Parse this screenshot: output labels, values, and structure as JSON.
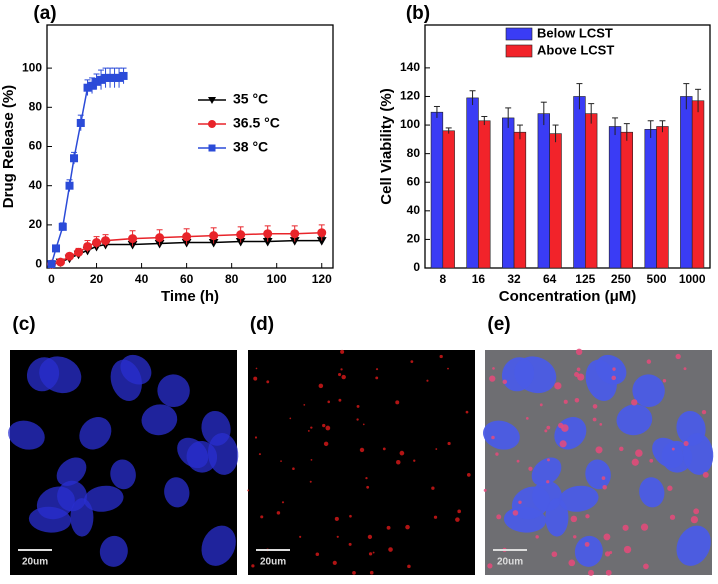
{
  "chart_data": [
    {
      "type": "line",
      "panel": "(a)",
      "xlabel": "Time (h)",
      "ylabel": "Drug Release (%)",
      "xlim": [
        -2,
        125
      ],
      "ylim": [
        -2,
        122
      ],
      "xticks": [
        0,
        20,
        40,
        60,
        80,
        100,
        120
      ],
      "yticks": [
        0,
        20,
        40,
        60,
        80,
        100
      ],
      "series": [
        {
          "name": "35 °C",
          "color": "#000000",
          "marker": "triangle-down",
          "x": [
            0,
            4,
            8,
            12,
            16,
            20,
            24,
            36,
            48,
            60,
            72,
            84,
            96,
            108,
            120
          ],
          "values": [
            0,
            1,
            3,
            5,
            7,
            9,
            10,
            10,
            10.5,
            11,
            11,
            11.5,
            11.5,
            12,
            12
          ],
          "errors": [
            0,
            1,
            1,
            1.5,
            2,
            2,
            2,
            2,
            2,
            2,
            2,
            2,
            2,
            2,
            2
          ]
        },
        {
          "name": "36.5 °C",
          "color": "#e8242a",
          "marker": "circle",
          "x": [
            0,
            4,
            8,
            12,
            16,
            20,
            24,
            36,
            48,
            60,
            72,
            84,
            96,
            108,
            120
          ],
          "values": [
            0,
            1,
            4,
            6,
            9,
            11,
            12,
            13,
            13.5,
            14,
            14.5,
            15,
            15.5,
            15.5,
            16
          ],
          "errors": [
            0,
            1,
            1.5,
            2,
            3,
            3,
            3,
            4,
            4,
            4,
            4,
            4,
            4,
            4,
            4
          ]
        },
        {
          "name": "38 °C",
          "color": "#2b4bd8",
          "marker": "square",
          "x": [
            0,
            2,
            5,
            8,
            10,
            13,
            16,
            18,
            20,
            22,
            24,
            26,
            28,
            30,
            32
          ],
          "values": [
            0,
            8,
            19,
            40,
            54,
            72,
            90,
            91,
            93,
            94,
            95,
            95,
            95,
            95,
            96
          ],
          "errors": [
            0,
            1,
            2,
            3,
            3,
            4,
            4,
            4,
            4,
            5,
            5,
            5,
            5,
            5,
            4
          ]
        }
      ]
    },
    {
      "type": "bar",
      "panel": "(b)",
      "xlabel": "Concentration (μM)",
      "ylabel": "Cell Viability (%)",
      "ylim": [
        0,
        170
      ],
      "yticks": [
        0,
        20,
        40,
        60,
        80,
        100,
        120,
        140
      ],
      "categories": [
        "8",
        "16",
        "32",
        "64",
        "125",
        "250",
        "500",
        "1000"
      ],
      "series": [
        {
          "name": "Below LCST",
          "color": "#3a3cf5",
          "values": [
            109,
            119,
            105,
            108,
            120,
            99,
            97,
            120
          ],
          "errors": [
            4,
            5,
            7,
            8,
            9,
            6,
            6,
            9
          ]
        },
        {
          "name": "Above LCST",
          "color": "#f2232a",
          "values": [
            96,
            103,
            95,
            94,
            108,
            95,
            99,
            117
          ],
          "errors": [
            2,
            3,
            5,
            6,
            7,
            6,
            4,
            8
          ]
        }
      ]
    }
  ],
  "images": [
    {
      "panel": "(c)",
      "scale_bar": "20um"
    },
    {
      "panel": "(d)",
      "scale_bar": "20um"
    },
    {
      "panel": "(e)",
      "scale_bar": "20um"
    }
  ]
}
